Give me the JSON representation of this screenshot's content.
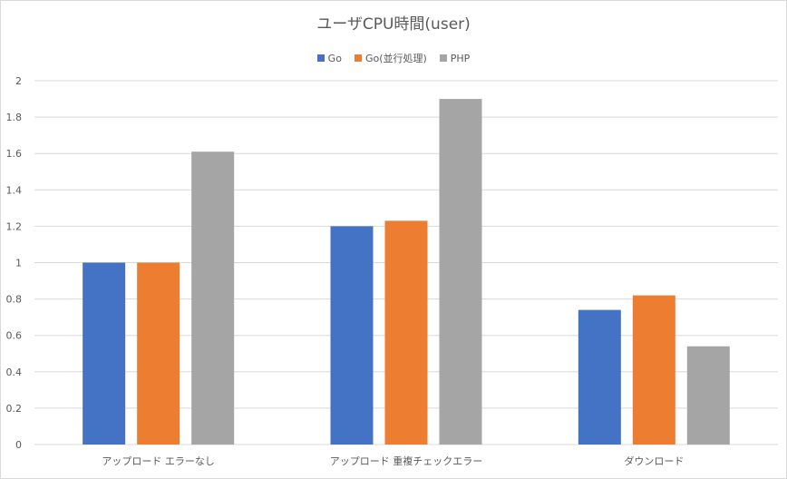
{
  "chart_data": {
    "type": "bar",
    "title": "ユーザCPU時間(user)",
    "categories": [
      "アップロード エラーなし",
      "アップロード 重複チェックエラー",
      "ダウンロード"
    ],
    "series": [
      {
        "name": "Go",
        "color": "#4472C4",
        "values": [
          1.0,
          1.2,
          0.74
        ]
      },
      {
        "name": "Go(並行処理)",
        "color": "#ED7D31",
        "values": [
          1.0,
          1.23,
          0.82
        ]
      },
      {
        "name": "PHP",
        "color": "#A5A5A5",
        "values": [
          1.61,
          1.9,
          0.54
        ]
      }
    ],
    "ylim": [
      0,
      2
    ],
    "yticks": [
      "0",
      "0.2",
      "0.4",
      "0.6",
      "0.8",
      "1",
      "1.2",
      "1.4",
      "1.6",
      "1.8",
      "2"
    ],
    "grid": true,
    "legend_position": "top"
  }
}
